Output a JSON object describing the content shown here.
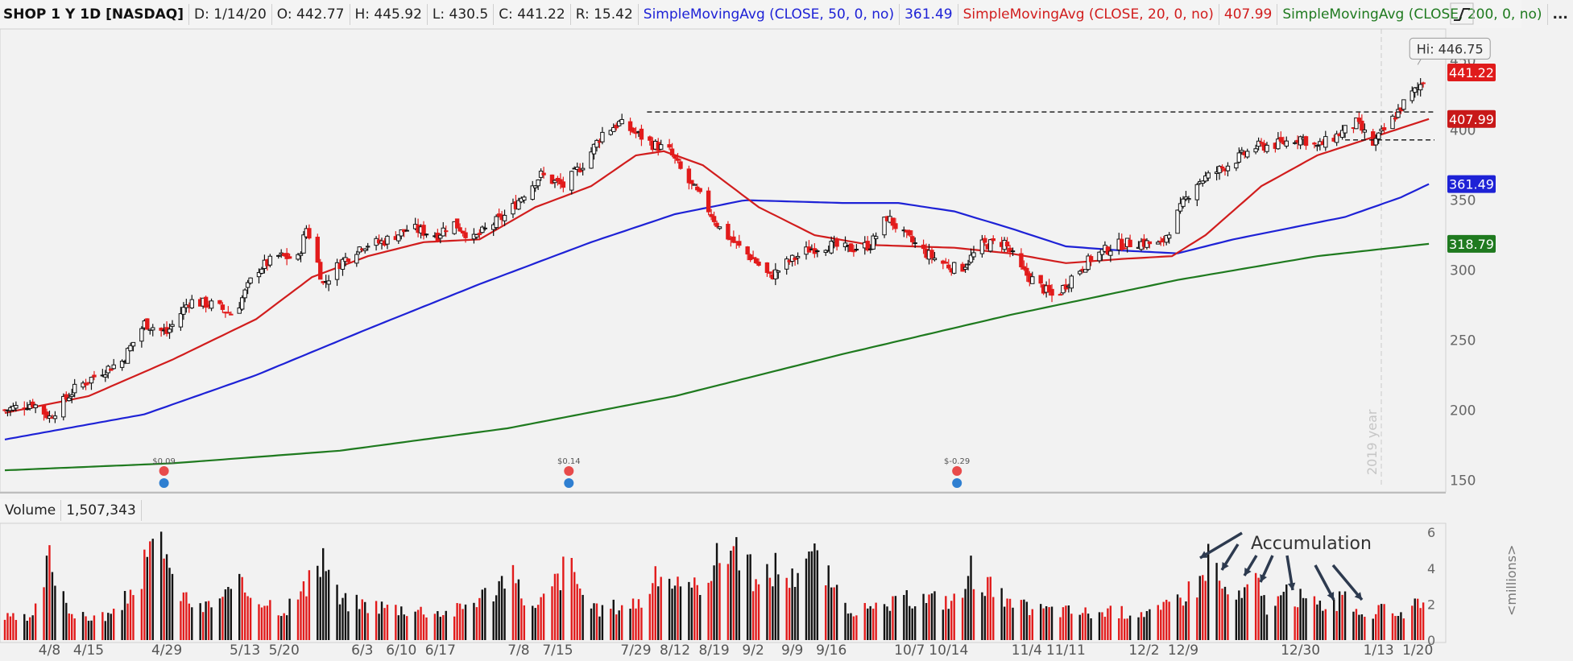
{
  "header": {
    "symbol": "SHOP 1 Y 1D [NASDAQ]",
    "date": "D: 1/14/20",
    "open": "O: 442.77",
    "high": "H: 445.92",
    "low": "L: 430.5",
    "close": "C: 441.22",
    "range": "R: 15.42",
    "sma50_label": "SimpleMovingAvg (CLOSE, 50, 0, no)",
    "sma50_value": "361.49",
    "sma20_label": "SimpleMovingAvg (CLOSE, 20, 0, no)",
    "sma20_value": "407.99",
    "sma200_label": "SimpleMovingAvg (CLOSE, 200, 0, no)",
    "sma200_value": "...",
    "more": "...",
    "menu_icon": "chart-style-icon"
  },
  "volume_panel": {
    "label": "Volume",
    "value": "1,507,343",
    "axis_unit": "<millions>"
  },
  "chart_data": {
    "type": "candlestick",
    "price_axis": {
      "ylim": [
        145,
        470
      ],
      "ticks": [
        150,
        200,
        250,
        300,
        350,
        400,
        450
      ]
    },
    "volume_axis": {
      "ylim": [
        0,
        6.5
      ],
      "ticks": [
        0,
        2,
        4,
        6
      ]
    },
    "x_ticks": [
      "4/8",
      "4/15",
      "4/29",
      "5/13",
      "5/20",
      "6/3",
      "6/10",
      "6/17",
      "7/8",
      "7/15",
      "7/29",
      "8/12",
      "8/19",
      "9/2",
      "9/9",
      "9/16",
      "10/7",
      "10/14",
      "11/4",
      "11/11",
      "12/2",
      "12/9",
      "12/30",
      "1/13",
      "1/20"
    ],
    "year_marker": "2019 year",
    "price_keyframes": [
      [
        0,
        200
      ],
      [
        10,
        205
      ],
      [
        16,
        195
      ],
      [
        25,
        215
      ],
      [
        35,
        228
      ],
      [
        42,
        235
      ],
      [
        50,
        262
      ],
      [
        58,
        255
      ],
      [
        66,
        278
      ],
      [
        75,
        275
      ],
      [
        82,
        268
      ],
      [
        90,
        300
      ],
      [
        98,
        310
      ],
      [
        105,
        308
      ],
      [
        108,
        330
      ],
      [
        110,
        320
      ],
      [
        114,
        290
      ],
      [
        120,
        305
      ],
      [
        128,
        318
      ],
      [
        135,
        320
      ],
      [
        145,
        330
      ],
      [
        155,
        325
      ],
      [
        160,
        335
      ],
      [
        168,
        322
      ],
      [
        174,
        332
      ],
      [
        180,
        340
      ],
      [
        186,
        355
      ],
      [
        192,
        368
      ],
      [
        200,
        360
      ],
      [
        208,
        378
      ],
      [
        214,
        398
      ],
      [
        220,
        405
      ],
      [
        226,
        398
      ],
      [
        232,
        390
      ],
      [
        238,
        385
      ],
      [
        244,
        365
      ],
      [
        250,
        350
      ],
      [
        256,
        330
      ],
      [
        262,
        318
      ],
      [
        268,
        308
      ],
      [
        274,
        295
      ],
      [
        280,
        305
      ],
      [
        288,
        315
      ],
      [
        295,
        318
      ],
      [
        302,
        315
      ],
      [
        310,
        318
      ],
      [
        316,
        338
      ],
      [
        322,
        325
      ],
      [
        330,
        312
      ],
      [
        336,
        305
      ],
      [
        342,
        300
      ],
      [
        350,
        318
      ],
      [
        358,
        320
      ],
      [
        364,
        300
      ],
      [
        370,
        290
      ],
      [
        376,
        280
      ],
      [
        382,
        295
      ],
      [
        390,
        310
      ],
      [
        398,
        318
      ],
      [
        406,
        320
      ],
      [
        414,
        318
      ],
      [
        420,
        340
      ],
      [
        426,
        362
      ],
      [
        432,
        368
      ],
      [
        440,
        378
      ],
      [
        448,
        388
      ],
      [
        456,
        390
      ],
      [
        464,
        395
      ],
      [
        470,
        388
      ],
      [
        476,
        395
      ],
      [
        484,
        405
      ],
      [
        490,
        390
      ],
      [
        496,
        405
      ],
      [
        502,
        422
      ],
      [
        506,
        430
      ],
      [
        510,
        441.22
      ]
    ],
    "sma20_keyframes": [
      [
        0,
        198
      ],
      [
        30,
        210
      ],
      [
        60,
        236
      ],
      [
        90,
        265
      ],
      [
        110,
        295
      ],
      [
        130,
        310
      ],
      [
        150,
        320
      ],
      [
        170,
        322
      ],
      [
        190,
        345
      ],
      [
        210,
        360
      ],
      [
        226,
        382
      ],
      [
        236,
        385
      ],
      [
        250,
        375
      ],
      [
        270,
        345
      ],
      [
        290,
        325
      ],
      [
        310,
        318
      ],
      [
        340,
        316
      ],
      [
        360,
        312
      ],
      [
        380,
        305
      ],
      [
        400,
        308
      ],
      [
        418,
        310
      ],
      [
        430,
        325
      ],
      [
        450,
        360
      ],
      [
        470,
        382
      ],
      [
        490,
        395
      ],
      [
        510,
        407.99
      ]
    ],
    "sma50_keyframes": [
      [
        0,
        179
      ],
      [
        50,
        197
      ],
      [
        90,
        225
      ],
      [
        130,
        258
      ],
      [
        170,
        290
      ],
      [
        210,
        320
      ],
      [
        240,
        340
      ],
      [
        265,
        350
      ],
      [
        300,
        348
      ],
      [
        320,
        348
      ],
      [
        340,
        342
      ],
      [
        360,
        330
      ],
      [
        380,
        317
      ],
      [
        400,
        314
      ],
      [
        420,
        312
      ],
      [
        440,
        322
      ],
      [
        460,
        330
      ],
      [
        480,
        338
      ],
      [
        500,
        352
      ],
      [
        510,
        361.49
      ]
    ],
    "sma200_keyframes": [
      [
        0,
        157
      ],
      [
        60,
        162
      ],
      [
        120,
        171
      ],
      [
        180,
        187
      ],
      [
        240,
        210
      ],
      [
        300,
        240
      ],
      [
        360,
        268
      ],
      [
        420,
        293
      ],
      [
        470,
        310
      ],
      [
        510,
        318.79
      ]
    ],
    "resistance_lines": [
      {
        "from": 230,
        "to": 512,
        "price": 413
      },
      {
        "from": 480,
        "to": 512,
        "price": 393
      }
    ],
    "last_price": 441.22,
    "price_badges": [
      {
        "label": "441.22",
        "value": 441.22,
        "color": "#e01b1b"
      },
      {
        "label": "407.99",
        "value": 407.99,
        "color": "#c81818"
      },
      {
        "label": "361.49",
        "value": 361.49,
        "color": "#1e22d6"
      },
      {
        "label": "318.79",
        "value": 318.79,
        "color": "#1f7a1f"
      }
    ],
    "high_callout": "Hi: 446.75",
    "dividends": [
      {
        "label": "$0.09",
        "index": 57
      },
      {
        "label": "$0.14",
        "index": 202
      },
      {
        "label": "$-0.29",
        "index": 341
      }
    ],
    "annotation": "Accumulation",
    "volume_keyframes": [
      [
        0,
        1.3
      ],
      [
        10,
        1.2
      ],
      [
        16,
        4.8
      ],
      [
        25,
        1.3
      ],
      [
        40,
        1.5
      ],
      [
        57,
        6.2
      ],
      [
        60,
        3.2
      ],
      [
        70,
        1.8
      ],
      [
        84,
        3.1
      ],
      [
        100,
        1.8
      ],
      [
        110,
        3.4
      ],
      [
        114,
        5.0
      ],
      [
        120,
        2.3
      ],
      [
        140,
        1.9
      ],
      [
        160,
        1.6
      ],
      [
        176,
        3.1
      ],
      [
        180,
        4.0
      ],
      [
        190,
        1.7
      ],
      [
        202,
        4.6
      ],
      [
        210,
        1.7
      ],
      [
        228,
        2.3
      ],
      [
        236,
        4.2
      ],
      [
        244,
        2.5
      ],
      [
        256,
        4.9
      ],
      [
        262,
        5.8
      ],
      [
        270,
        3.0
      ],
      [
        276,
        4.4
      ],
      [
        282,
        3.6
      ],
      [
        287,
        5.7
      ],
      [
        294,
        3.9
      ],
      [
        300,
        2.0
      ],
      [
        310,
        1.7
      ],
      [
        326,
        2.5
      ],
      [
        342,
        2.3
      ],
      [
        346,
        4.2
      ],
      [
        360,
        2.0
      ],
      [
        372,
        1.8
      ],
      [
        390,
        1.6
      ],
      [
        414,
        1.7
      ],
      [
        420,
        2.5
      ],
      [
        428,
        3.4
      ],
      [
        432,
        5.6
      ],
      [
        436,
        3.0
      ],
      [
        442,
        2.4
      ],
      [
        448,
        3.5
      ],
      [
        452,
        2.0
      ],
      [
        460,
        2.7
      ],
      [
        470,
        2.1
      ],
      [
        480,
        2.3
      ],
      [
        484,
        1.8
      ],
      [
        490,
        1.6
      ],
      [
        496,
        1.8
      ],
      [
        500,
        1.6
      ],
      [
        506,
        2.0
      ],
      [
        510,
        1.5
      ]
    ]
  }
}
